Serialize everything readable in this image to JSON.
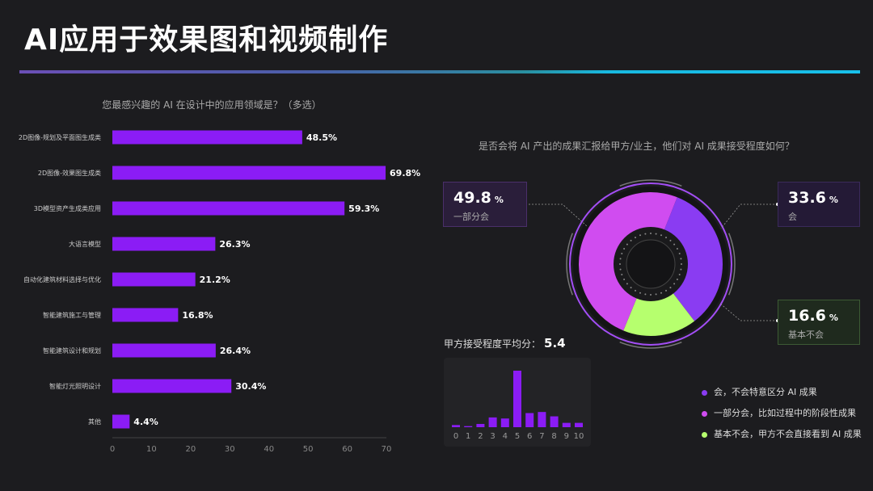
{
  "page": {
    "title": "AI应用于效果图和视频制作"
  },
  "chart_data": [
    {
      "type": "bar",
      "orientation": "horizontal",
      "title": "您最感兴趣的 AI 在设计中的应用领域是？（多选）",
      "categories": [
        "2D图像-规划及平面图生成类",
        "2D图像-效果图生成类",
        "3D模型资产生成类应用",
        "大语言模型",
        "自动化建筑材料选择与优化",
        "智能建筑施工与管理",
        "智能建筑设计和规划",
        "智能灯光照明设计",
        "其他"
      ],
      "values": [
        48.5,
        69.8,
        59.3,
        26.3,
        21.2,
        16.8,
        26.4,
        30.4,
        4.4
      ],
      "value_labels": [
        "48.5%",
        "69.8%",
        "59.3%",
        "26.3%",
        "21.2%",
        "16.8%",
        "26.4%",
        "30.4%",
        "4.4%"
      ],
      "xlim": [
        0,
        70
      ],
      "xticks": [
        "0",
        "10",
        "20",
        "30",
        "40",
        "50",
        "60",
        "70"
      ],
      "color": "#8b1cf5"
    },
    {
      "type": "pie",
      "title": "是否会将 AI 产出的成果汇报给甲方/业主，他们对 AI 成果接受程度如何？",
      "slices": [
        {
          "label": "会",
          "value": 33.6,
          "value_text": "33.6",
          "color": "#8a3cf2",
          "legend": "会，不会特意区分 AI 成果"
        },
        {
          "label": "基本不会",
          "value": 16.6,
          "value_text": "16.6",
          "color": "#b6ff6e",
          "legend": "基本不会，甲方不会直接看到 AI 成果"
        },
        {
          "label": "一部分会",
          "value": 49.8,
          "value_text": "49.8",
          "color": "#d04cf0",
          "legend": "一部分会，比如过程中的阶段性成果"
        }
      ],
      "unit": "%"
    },
    {
      "type": "bar",
      "title": "甲方接受程度平均分：",
      "average": "5.4",
      "categories": [
        "0",
        "1",
        "2",
        "3",
        "4",
        "5",
        "6",
        "7",
        "8",
        "9",
        "10"
      ],
      "values": [
        2,
        1,
        3,
        9,
        8,
        52,
        13,
        14,
        10,
        4,
        4
      ],
      "color": "#8b1cf5"
    }
  ]
}
